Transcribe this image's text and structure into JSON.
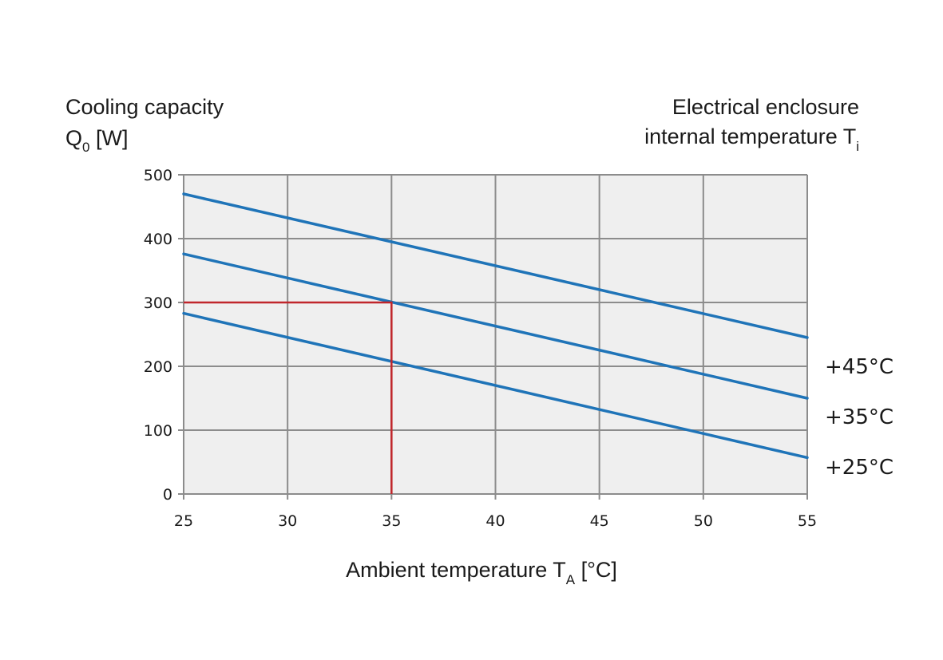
{
  "chart_data": {
    "type": "line",
    "y_title_line1": "Cooling capacity",
    "y_title_line2": {
      "base": "Q",
      "sub": "0",
      "tail": " [W]"
    },
    "right_title_line1": "Electrical enclosure",
    "right_title_line2": {
      "base": "internal temperature T",
      "sub": "i"
    },
    "x_title": {
      "base": "Ambient temperature T",
      "sub": "A",
      "tail": " [°C]"
    },
    "xlim": [
      25,
      55
    ],
    "ylim": [
      0,
      500
    ],
    "x_ticks": [
      25,
      30,
      35,
      40,
      45,
      50,
      55
    ],
    "y_ticks": [
      0,
      100,
      200,
      300,
      400,
      500
    ],
    "grid": true,
    "plot_background": "#efefef",
    "grid_color": "#8c8c8c",
    "series_color": "#1f74b8",
    "marker_color": "#c0262b",
    "series": [
      {
        "name": "+45°C",
        "x": [
          25,
          55
        ],
        "y": [
          470,
          245
        ]
      },
      {
        "name": "+35°C",
        "x": [
          25,
          55
        ],
        "y": [
          376,
          150
        ]
      },
      {
        "name": "+25°C",
        "x": [
          25,
          55
        ],
        "y": [
          283,
          57
        ]
      }
    ],
    "example_reading": {
      "x": 35,
      "y": 300
    }
  }
}
